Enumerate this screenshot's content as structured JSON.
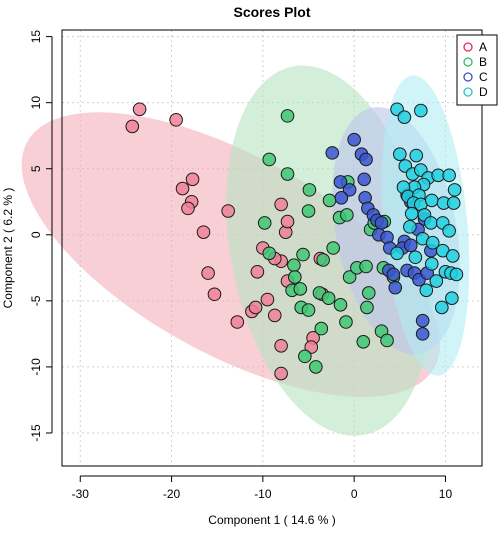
{
  "chart_data": {
    "type": "scatter",
    "title": "Scores Plot",
    "xlabel": "Component 1 ( 14.6 % )",
    "ylabel": "Component 2 ( 6.2 % )",
    "xlim": [
      -32,
      14
    ],
    "ylim": [
      -17.5,
      15.5
    ],
    "xticks": [
      -30,
      -20,
      -10,
      0,
      10
    ],
    "yticks": [
      -15,
      -10,
      -5,
      0,
      5,
      10,
      15
    ],
    "grid": true,
    "legend_position": "top-right",
    "series": [
      {
        "name": "A",
        "color": "#f0245a",
        "fill": "#f08098",
        "ellipse": {
          "cx": -13.5,
          "cy": -1.5,
          "rx": 25.5,
          "ry": 7.5,
          "angle_deg": -29,
          "fill": "#f4a7b5",
          "opacity": 0.55
        },
        "points": [
          [
            -23.5,
            9.5
          ],
          [
            -24.3,
            8.2
          ],
          [
            -19.5,
            8.7
          ],
          [
            -18.8,
            3.5
          ],
          [
            -17.7,
            4.2
          ],
          [
            -17.8,
            2.5
          ],
          [
            -18.2,
            2.0
          ],
          [
            -16.5,
            0.2
          ],
          [
            -13.8,
            1.8
          ],
          [
            -16.0,
            -2.9
          ],
          [
            -15.3,
            -4.5
          ],
          [
            -12.8,
            -6.6
          ],
          [
            -11.2,
            -5.8
          ],
          [
            -10.8,
            -5.5
          ],
          [
            -9.5,
            -4.9
          ],
          [
            -10.0,
            -1.0
          ],
          [
            -10.6,
            -2.8
          ],
          [
            -8.0,
            -2.0
          ],
          [
            -7.5,
            0.2
          ],
          [
            -7.3,
            1.0
          ],
          [
            -8.0,
            2.3
          ],
          [
            -8.7,
            -1.8
          ],
          [
            -7.3,
            -3.5
          ],
          [
            -8.7,
            -6.1
          ],
          [
            -8.0,
            -8.4
          ],
          [
            -4.5,
            -7.8
          ],
          [
            -4.7,
            -8.5
          ],
          [
            -8.0,
            -10.5
          ],
          [
            -3.7,
            -1.8
          ],
          [
            -3.5,
            -4.5
          ]
        ]
      },
      {
        "name": "B",
        "color": "#2fb86a",
        "fill": "#3ec874",
        "ellipse": {
          "cx": -2.8,
          "cy": -1.2,
          "rx": 10.7,
          "ry": 14.2,
          "angle_deg": 11,
          "fill": "#b5e3c0",
          "opacity": 0.6
        },
        "points": [
          [
            -7.3,
            9.0
          ],
          [
            -9.3,
            5.7
          ],
          [
            -7.3,
            4.6
          ],
          [
            -4.9,
            3.4
          ],
          [
            -5.0,
            1.8
          ],
          [
            -2.7,
            2.6
          ],
          [
            -0.7,
            4.0
          ],
          [
            -1.6,
            1.3
          ],
          [
            -2.3,
            -1.0
          ],
          [
            -3.4,
            -1.9
          ],
          [
            -5.6,
            -1.5
          ],
          [
            -6.6,
            -2.3
          ],
          [
            -6.5,
            -3.2
          ],
          [
            -6.8,
            -4.2
          ],
          [
            -5.9,
            -4.1
          ],
          [
            -5.8,
            -5.5
          ],
          [
            -5.0,
            -5.7
          ],
          [
            -3.8,
            -4.4
          ],
          [
            -2.8,
            -4.8
          ],
          [
            -1.5,
            -5.3
          ],
          [
            -0.9,
            -6.6
          ],
          [
            -3.6,
            -7.1
          ],
          [
            -5.4,
            -9.2
          ],
          [
            -4.2,
            -10.0
          ],
          [
            -9.8,
            0.9
          ],
          [
            -9.3,
            -1.4
          ],
          [
            -0.5,
            -3.2
          ],
          [
            0.3,
            -2.5
          ],
          [
            1.3,
            -2.4
          ],
          [
            1.6,
            -4.4
          ],
          [
            1.8,
            0.4
          ],
          [
            1.4,
            -5.5
          ],
          [
            2.2,
            0.9
          ],
          [
            3.0,
            -7.3
          ],
          [
            3.2,
            -2.5
          ],
          [
            3.6,
            -8.0
          ],
          [
            4.3,
            -3.2
          ],
          [
            1.0,
            -8.1
          ],
          [
            3.3,
            1.0
          ],
          [
            -0.8,
            1.5
          ]
        ]
      },
      {
        "name": "C",
        "color": "#3a4fd6",
        "fill": "#3b55cf",
        "ellipse": {
          "cx": 4.6,
          "cy": 0.3,
          "rx": 6.6,
          "ry": 9.5,
          "angle_deg": 11,
          "fill": "#bcc5ee",
          "opacity": 0.6
        },
        "points": [
          [
            -2.4,
            6.2
          ],
          [
            -1.5,
            4.0
          ],
          [
            -0.5,
            3.4
          ],
          [
            -1.4,
            2.8
          ],
          [
            0.0,
            7.2
          ],
          [
            0.8,
            6.1
          ],
          [
            1.3,
            5.7
          ],
          [
            1.1,
            4.2
          ],
          [
            1.2,
            2.8
          ],
          [
            1.5,
            2.0
          ],
          [
            2.1,
            1.5
          ],
          [
            2.5,
            1.1
          ],
          [
            3.0,
            0.9
          ],
          [
            2.7,
            0.0
          ],
          [
            3.6,
            -0.2
          ],
          [
            3.9,
            -1.0
          ],
          [
            3.8,
            -2.7
          ],
          [
            4.3,
            -3.0
          ],
          [
            4.5,
            -4.0
          ],
          [
            5.5,
            -0.5
          ],
          [
            5.3,
            -1.0
          ],
          [
            6.2,
            -0.8
          ],
          [
            5.8,
            -2.7
          ],
          [
            6.6,
            -2.9
          ],
          [
            7.1,
            -3.4
          ],
          [
            7.5,
            -6.5
          ],
          [
            7.5,
            -7.5
          ],
          [
            5.8,
            3.0
          ],
          [
            6.2,
            2.5
          ],
          [
            7.0,
            0.4
          ],
          [
            7.7,
            1.2
          ],
          [
            8.0,
            -2.9
          ],
          [
            8.4,
            -1.2
          ]
        ]
      },
      {
        "name": "D",
        "color": "#1cc7d2",
        "fill": "#20d0e0",
        "ellipse": {
          "cx": 7.8,
          "cy": 0.7,
          "rx": 4.6,
          "ry": 11.4,
          "angle_deg": 5,
          "fill": "#b0ecf2",
          "opacity": 0.6
        },
        "points": [
          [
            4.7,
            9.5
          ],
          [
            5.5,
            8.9
          ],
          [
            7.3,
            9.4
          ],
          [
            5.0,
            6.1
          ],
          [
            6.8,
            6.0
          ],
          [
            5.6,
            5.2
          ],
          [
            6.4,
            4.6
          ],
          [
            7.3,
            4.9
          ],
          [
            8.1,
            4.3
          ],
          [
            9.2,
            4.5
          ],
          [
            10.4,
            4.5
          ],
          [
            7.6,
            3.8
          ],
          [
            6.6,
            3.6
          ],
          [
            5.4,
            3.6
          ],
          [
            5.9,
            2.9
          ],
          [
            7.1,
            3.0
          ],
          [
            6.5,
            2.4
          ],
          [
            7.3,
            2.3
          ],
          [
            8.5,
            2.6
          ],
          [
            9.8,
            2.4
          ],
          [
            10.9,
            2.4
          ],
          [
            11.0,
            3.4
          ],
          [
            6.3,
            1.6
          ],
          [
            7.7,
            1.5
          ],
          [
            8.4,
            0.9
          ],
          [
            9.7,
            0.9
          ],
          [
            10.4,
            0.3
          ],
          [
            6.1,
            0.6
          ],
          [
            7.5,
            -0.3
          ],
          [
            8.6,
            -0.6
          ],
          [
            9.7,
            -1.2
          ],
          [
            10.8,
            -1.6
          ],
          [
            6.7,
            -1.7
          ],
          [
            8.5,
            -2.2
          ],
          [
            10.0,
            -2.8
          ],
          [
            10.6,
            -2.9
          ],
          [
            11.2,
            -3.0
          ],
          [
            7.9,
            -4.2
          ],
          [
            9.0,
            -3.5
          ],
          [
            10.7,
            -4.8
          ],
          [
            9.6,
            -5.5
          ],
          [
            4.7,
            -1.4
          ]
        ]
      }
    ]
  }
}
